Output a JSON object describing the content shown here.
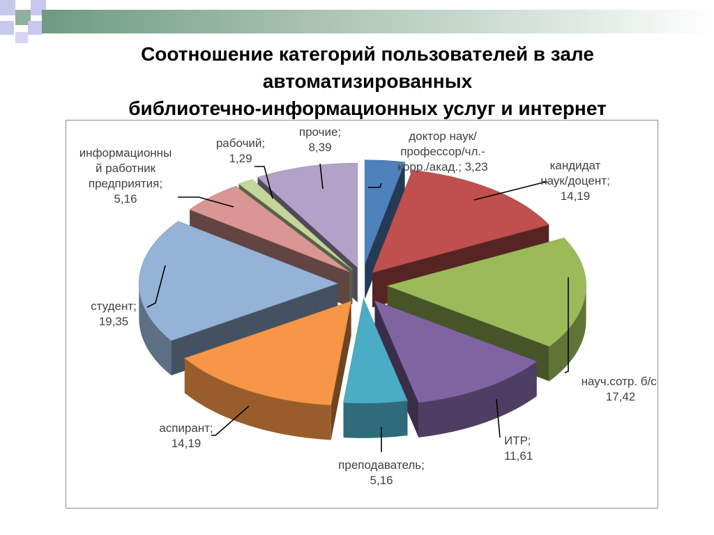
{
  "title": {
    "line1": "Соотношение категорий пользователей в зале",
    "line2": "автоматизированных",
    "line3": "библиотечно-информационных услуг и интернет"
  },
  "chart_data": {
    "type": "pie",
    "three_d": true,
    "exploded": true,
    "series": [
      {
        "name": "доктор наук/профессор/чл.-корр./акад.",
        "value": 3.23,
        "color": "#4f81bd"
      },
      {
        "name": "кандидат наук/доцент",
        "value": 14.19,
        "color": "#c0504d"
      },
      {
        "name": "науч.сотр. б/с",
        "value": 17.42,
        "color": "#9bbb59"
      },
      {
        "name": "ИТР",
        "value": 11.61,
        "color": "#8064a2"
      },
      {
        "name": "преподаватель",
        "value": 5.16,
        "color": "#4bacc6"
      },
      {
        "name": "аспирант",
        "value": 14.19,
        "color": "#f79646"
      },
      {
        "name": "студент",
        "value": 19.35,
        "color": "#95b3d7"
      },
      {
        "name": "информационный работник предприятия",
        "value": 5.16,
        "color": "#d99694"
      },
      {
        "name": "рабочий",
        "value": 1.29,
        "color": "#c3d69b"
      },
      {
        "name": "прочие",
        "value": 8.39,
        "color": "#b3a2c7"
      }
    ],
    "data_labels": [
      [
        "доктор наук/",
        "профессор/чл.-",
        "корр./акад.; 3,23"
      ],
      [
        "кандидат",
        "наук/доцент;",
        "14,19"
      ],
      [
        "науч.сотр. б/с;",
        "17,42"
      ],
      [
        "ИТР;",
        "11,61"
      ],
      [
        "преподаватель;",
        "5,16"
      ],
      [
        "аспирант;",
        "14,19"
      ],
      [
        "студент;",
        "19,35"
      ],
      [
        "информационны",
        "й работник",
        "предприятия;",
        "5,16"
      ],
      [
        "рабочий;",
        "1,29"
      ],
      [
        "прочие;",
        "8,39"
      ]
    ]
  }
}
